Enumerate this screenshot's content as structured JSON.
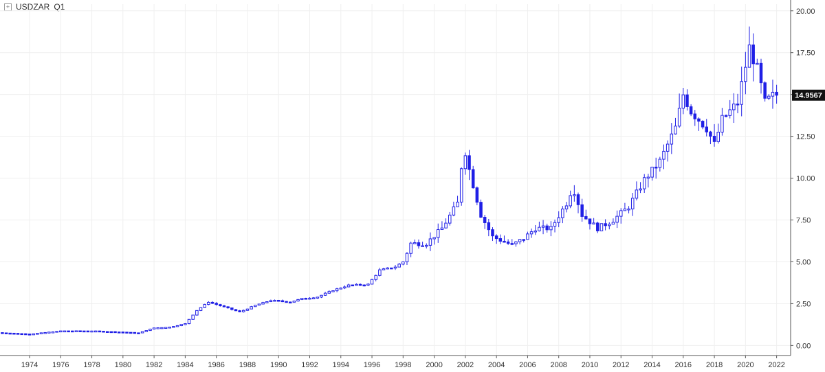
{
  "header": {
    "expander": "+",
    "symbol": "USDZAR",
    "period": "Q1"
  },
  "colors": {
    "candle": "#1f1fe6",
    "grid": "#efefef",
    "axis": "#555555",
    "last_bg": "#111111"
  },
  "chart_data": {
    "type": "candlestick",
    "title": "USDZAR Q1",
    "xlabel": "",
    "ylabel": "",
    "ylim": [
      -0.6,
      20.4
    ],
    "yticks": [
      "0.00",
      "2.50",
      "5.00",
      "7.50",
      "10.00",
      "12.50",
      "15.00",
      "17.50",
      "20.00"
    ],
    "ytick_values": [
      0,
      2.5,
      5,
      7.5,
      10,
      12.5,
      15,
      17.5,
      20
    ],
    "xticks": [
      "1974",
      "1976",
      "1978",
      "1980",
      "1982",
      "1984",
      "1986",
      "1988",
      "1990",
      "1992",
      "1994",
      "1996",
      "1998",
      "2000",
      "2002",
      "2004",
      "2006",
      "2008",
      "2010",
      "2012",
      "2014",
      "2016",
      "2018",
      "2020",
      "2022"
    ],
    "xtick_values": [
      1974,
      1976,
      1978,
      1980,
      1982,
      1984,
      1986,
      1988,
      1990,
      1992,
      1994,
      1996,
      1998,
      2000,
      2002,
      2004,
      2006,
      2008,
      2010,
      2012,
      2014,
      2016,
      2018,
      2020,
      2022
    ],
    "xlim": [
      1972.1,
      2022.9
    ],
    "last_value": 14.9567,
    "last_label": "14.9567",
    "key_points": [
      {
        "x": 1972.0,
        "y": 0.77
      },
      {
        "x": 1974.0,
        "y": 0.68
      },
      {
        "x": 1976.0,
        "y": 0.87
      },
      {
        "x": 1978.0,
        "y": 0.87
      },
      {
        "x": 1980.0,
        "y": 0.8
      },
      {
        "x": 1981.0,
        "y": 0.75
      },
      {
        "x": 1982.0,
        "y": 1.05
      },
      {
        "x": 1983.0,
        "y": 1.1
      },
      {
        "x": 1984.0,
        "y": 1.3
      },
      {
        "x": 1984.75,
        "y": 2.1
      },
      {
        "x": 1985.5,
        "y": 2.6
      },
      {
        "x": 1986.5,
        "y": 2.3
      },
      {
        "x": 1987.5,
        "y": 2.0
      },
      {
        "x": 1988.5,
        "y": 2.4
      },
      {
        "x": 1989.5,
        "y": 2.7
      },
      {
        "x": 1990.75,
        "y": 2.6
      },
      {
        "x": 1991.5,
        "y": 2.8
      },
      {
        "x": 1992.5,
        "y": 2.9
      },
      {
        "x": 1993.5,
        "y": 3.3
      },
      {
        "x": 1994.5,
        "y": 3.6
      },
      {
        "x": 1995.75,
        "y": 3.65
      },
      {
        "x": 1996.5,
        "y": 4.5
      },
      {
        "x": 1997.5,
        "y": 4.7
      },
      {
        "x": 1998.0,
        "y": 5.0
      },
      {
        "x": 1998.5,
        "y": 6.1
      },
      {
        "x": 1999.5,
        "y": 6.1
      },
      {
        "x": 2000.5,
        "y": 7.0
      },
      {
        "x": 2001.5,
        "y": 8.5
      },
      {
        "x": 2001.9,
        "y": 12.0
      },
      {
        "x": 2002.25,
        "y": 10.5
      },
      {
        "x": 2003.0,
        "y": 7.8
      },
      {
        "x": 2003.75,
        "y": 6.5
      },
      {
        "x": 2004.5,
        "y": 6.2
      },
      {
        "x": 2005.0,
        "y": 6.0
      },
      {
        "x": 2005.75,
        "y": 6.4
      },
      {
        "x": 2006.5,
        "y": 7.0
      },
      {
        "x": 2007.5,
        "y": 7.0
      },
      {
        "x": 2008.5,
        "y": 8.5
      },
      {
        "x": 2008.9,
        "y": 9.5
      },
      {
        "x": 2009.5,
        "y": 7.8
      },
      {
        "x": 2010.5,
        "y": 7.0
      },
      {
        "x": 2011.5,
        "y": 7.5
      },
      {
        "x": 2012.5,
        "y": 8.3
      },
      {
        "x": 2013.5,
        "y": 9.9
      },
      {
        "x": 2014.5,
        "y": 11.0
      },
      {
        "x": 2015.5,
        "y": 13.0
      },
      {
        "x": 2016.0,
        "y": 15.0
      },
      {
        "x": 2016.5,
        "y": 14.0
      },
      {
        "x": 2017.5,
        "y": 13.0
      },
      {
        "x": 2018.0,
        "y": 12.0
      },
      {
        "x": 2018.5,
        "y": 13.5
      },
      {
        "x": 2019.5,
        "y": 14.5
      },
      {
        "x": 2020.25,
        "y": 17.8
      },
      {
        "x": 2020.75,
        "y": 16.5
      },
      {
        "x": 2021.25,
        "y": 14.5
      },
      {
        "x": 2021.75,
        "y": 14.9
      },
      {
        "x": 2022.0,
        "y": 14.96
      }
    ]
  }
}
